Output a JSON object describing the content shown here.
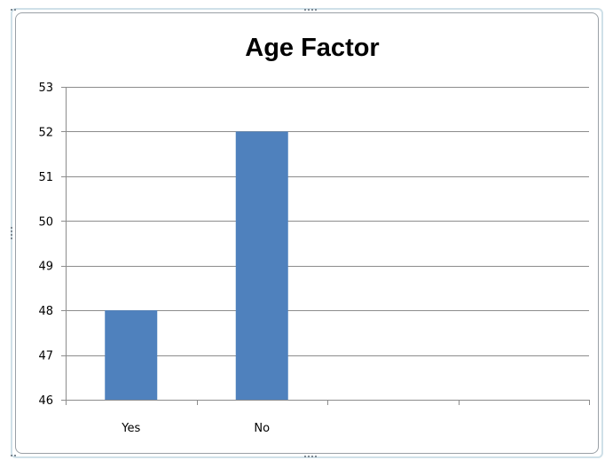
{
  "chart_data": {
    "type": "bar",
    "title": "Age Factor",
    "xlabel": "",
    "ylabel": "",
    "categories": [
      "Yes",
      "No",
      "",
      ""
    ],
    "values": [
      48,
      52,
      null,
      null
    ],
    "ylim": [
      46,
      53
    ],
    "yticks": [
      46,
      47,
      48,
      49,
      50,
      51,
      52,
      53
    ],
    "grid": true,
    "legend": "none",
    "bar_color": "#4f81bd",
    "grid_color": "#8c8c8c"
  }
}
